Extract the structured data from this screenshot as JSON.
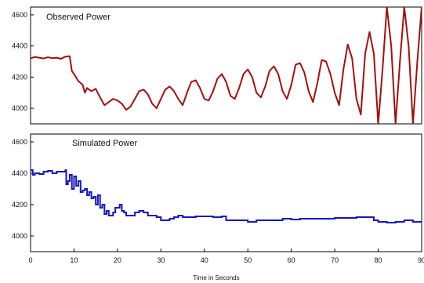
{
  "chart_data": [
    {
      "type": "line",
      "title": "Observed Power",
      "xlabel": "",
      "ylabel": "",
      "xlim": [
        0,
        90
      ],
      "ylim": [
        3900,
        4650
      ],
      "yticks": [
        "4000",
        "4200",
        "4400",
        "4600"
      ],
      "color": "#a01010",
      "series": [
        {
          "x": [
            0,
            1,
            2,
            3,
            4,
            5,
            6,
            7,
            8,
            9,
            9.5,
            10,
            11,
            12,
            12.5,
            13,
            14,
            15,
            16,
            17,
            18,
            19,
            20,
            21,
            22,
            23,
            24,
            25,
            26,
            27,
            28,
            29,
            30,
            31,
            32,
            33,
            34,
            35,
            36,
            37,
            38,
            39,
            40,
            41,
            42,
            43,
            44,
            45,
            46,
            47,
            48,
            49,
            50,
            51,
            52,
            53,
            54,
            55,
            56,
            57,
            58,
            59,
            60,
            61,
            62,
            63,
            64,
            65,
            66,
            67,
            68,
            69,
            70,
            71,
            72,
            73,
            74,
            75,
            76,
            77,
            78,
            79,
            80,
            81,
            82,
            83,
            84,
            85,
            86,
            87,
            88,
            89,
            90
          ],
          "y": [
            4320,
            4330,
            4325,
            4320,
            4328,
            4322,
            4325,
            4318,
            4332,
            4335,
            4240,
            4220,
            4175,
            4150,
            4100,
            4130,
            4110,
            4125,
            4070,
            4020,
            4040,
            4060,
            4050,
            4030,
            3990,
            4010,
            4060,
            4110,
            4120,
            4090,
            4030,
            4000,
            4060,
            4120,
            4140,
            4110,
            4060,
            4020,
            4100,
            4170,
            4180,
            4130,
            4060,
            4050,
            4110,
            4190,
            4220,
            4170,
            4080,
            4060,
            4130,
            4220,
            4250,
            4200,
            4100,
            4070,
            4140,
            4240,
            4270,
            4220,
            4110,
            4060,
            4150,
            4280,
            4290,
            4230,
            4110,
            4040,
            4160,
            4310,
            4300,
            4220,
            4100,
            4020,
            4250,
            4410,
            4320,
            4060,
            3960,
            4350,
            4490,
            4350,
            3900,
            4250,
            4650,
            4400,
            3900,
            4300,
            4650,
            4400,
            3900,
            4300,
            4650
          ]
        }
      ]
    },
    {
      "type": "line",
      "title": "Simulated Power",
      "xlabel": "Time in Seconds",
      "ylabel": "",
      "xlim": [
        0,
        90
      ],
      "ylim": [
        3900,
        4650
      ],
      "yticks": [
        "4000",
        "4200",
        "4400",
        "4600"
      ],
      "xticks": [
        "0",
        "10",
        "20",
        "30",
        "40",
        "50",
        "60",
        "70",
        "80",
        "90"
      ],
      "color": "#1515c0",
      "series": [
        {
          "x": [
            0,
            0.5,
            1,
            2,
            3,
            4,
            5,
            6,
            7,
            8,
            8.2,
            8.6,
            9,
            9.5,
            10,
            10.5,
            11,
            11.5,
            12,
            12.5,
            13,
            13.5,
            14,
            14.5,
            15,
            15.5,
            16,
            16.5,
            17,
            17.5,
            18,
            18.5,
            19,
            19.5,
            20,
            20.5,
            21,
            21.5,
            22,
            23,
            24,
            25,
            26,
            27,
            28,
            29,
            30,
            31,
            32,
            33,
            34,
            35,
            36,
            37,
            38,
            39,
            40,
            42,
            44,
            45,
            46,
            48,
            50,
            52,
            55,
            58,
            60,
            62,
            65,
            70,
            75,
            78,
            79,
            80,
            82,
            84,
            86,
            88,
            90
          ],
          "y": [
            4420,
            4390,
            4400,
            4395,
            4410,
            4415,
            4400,
            4410,
            4410,
            4420,
            4330,
            4350,
            4390,
            4300,
            4380,
            4320,
            4350,
            4280,
            4290,
            4300,
            4260,
            4280,
            4240,
            4250,
            4200,
            4260,
            4180,
            4200,
            4140,
            4160,
            4130,
            4130,
            4150,
            4180,
            4180,
            4200,
            4160,
            4150,
            4130,
            4130,
            4150,
            4160,
            4150,
            4130,
            4130,
            4120,
            4100,
            4100,
            4110,
            4120,
            4130,
            4120,
            4120,
            4120,
            4125,
            4125,
            4125,
            4120,
            4125,
            4100,
            4100,
            4100,
            4090,
            4100,
            4100,
            4110,
            4105,
            4110,
            4110,
            4115,
            4120,
            4120,
            4100,
            4090,
            4085,
            4090,
            4100,
            4090,
            4090
          ]
        }
      ]
    }
  ]
}
